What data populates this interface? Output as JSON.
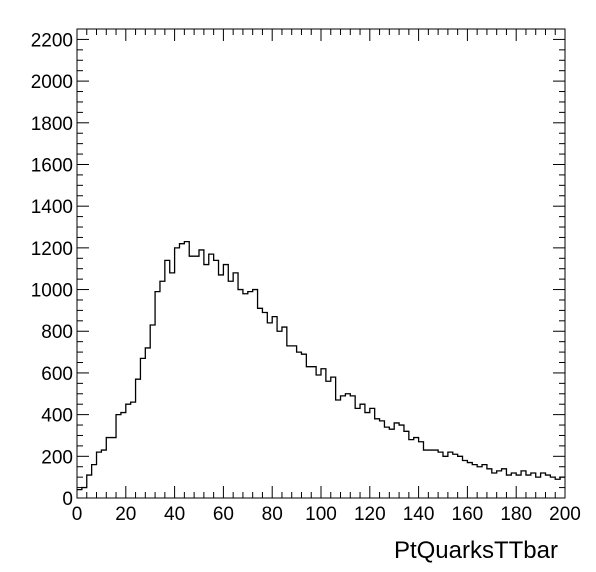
{
  "chart_data": {
    "type": "histogram",
    "title": "",
    "xlabel": "PtQuarksTTbar",
    "ylabel": "",
    "xlim": [
      0,
      200
    ],
    "ylim": [
      0,
      2250
    ],
    "bin_width": 2,
    "x_ticks": [
      0,
      20,
      40,
      60,
      80,
      100,
      120,
      140,
      160,
      180,
      200
    ],
    "x_tick_labels": [
      "0",
      "20",
      "40",
      "60",
      "80",
      "100",
      "120",
      "140",
      "160",
      "180",
      "200"
    ],
    "y_ticks": [
      0,
      200,
      400,
      600,
      800,
      1000,
      1200,
      1400,
      1600,
      1800,
      2000,
      2200
    ],
    "y_tick_labels": [
      "0",
      "200",
      "400",
      "600",
      "800",
      "1000",
      "1200",
      "1400",
      "1600",
      "1800",
      "2000",
      "2200"
    ],
    "grid": false,
    "legend": "none",
    "line_color": "#000000",
    "bin_edges_start": 0,
    "values": [
      40,
      50,
      110,
      160,
      220,
      230,
      290,
      290,
      400,
      410,
      450,
      460,
      570,
      670,
      720,
      830,
      990,
      1040,
      1140,
      1080,
      1200,
      1220,
      1230,
      1160,
      1160,
      1190,
      1120,
      1170,
      1140,
      1070,
      1120,
      1040,
      1080,
      1000,
      980,
      990,
      1000,
      910,
      890,
      840,
      870,
      800,
      820,
      730,
      730,
      700,
      690,
      630,
      630,
      590,
      620,
      560,
      580,
      470,
      490,
      500,
      490,
      430,
      450,
      410,
      430,
      380,
      370,
      340,
      330,
      360,
      350,
      320,
      280,
      290,
      270,
      230,
      230,
      230,
      220,
      200,
      220,
      210,
      200,
      180,
      170,
      160,
      150,
      160,
      140,
      120,
      130,
      140,
      110,
      120,
      110,
      130,
      110,
      120,
      100,
      120,
      110,
      100,
      90,
      100
    ]
  }
}
